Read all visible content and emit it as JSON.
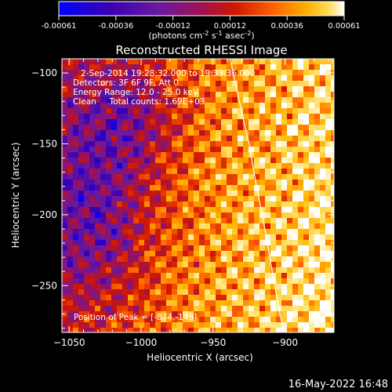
{
  "colorbar": {
    "tick_labels": [
      "-0.00061",
      "-0.00036",
      "-0.00012",
      "0.00012",
      "0.00036",
      "0.00061"
    ],
    "unit_parts": [
      "(photons cm",
      "-2",
      " s",
      "-1",
      " asec",
      "-2",
      ")"
    ]
  },
  "plot": {
    "title": "Reconstructed RHESSI Image",
    "info_lines": [
      "2-Sep-2014 19:28:32.000 to 19:33:36.000",
      "Detectors: 3F 6F 9F, Att 0",
      "Energy Range: 12.0 - 25.0 keV",
      "Clean     Total counts: 1.69E+03"
    ],
    "peak_label": "Position of Peak = [-874,-148]"
  },
  "footer": {
    "timestamp": "16-May-2022 16:48"
  },
  "chart_data": {
    "type": "heatmap",
    "title": "Reconstructed RHESSI Image",
    "xlabel": "Heliocentric X (arcsec)",
    "ylabel": "Heliocentric Y (arcsec)",
    "xlim": [
      -1055,
      -866
    ],
    "ylim": [
      -283,
      -90
    ],
    "x_ticks": [
      {
        "value": -1050,
        "label": "−1050"
      },
      {
        "value": -1000,
        "label": "−1000"
      },
      {
        "value": -950,
        "label": "−950"
      },
      {
        "value": -900,
        "label": "−900"
      }
    ],
    "y_ticks": [
      {
        "value": -100,
        "label": "−100"
      },
      {
        "value": -150,
        "label": "−150"
      },
      {
        "value": -200,
        "label": "−200"
      },
      {
        "value": -250,
        "label": "−250"
      }
    ],
    "colorbar_range": [
      -0.00061,
      0.00061
    ],
    "peak_position": [
      -874,
      -148
    ],
    "limb_curve": [
      [
        -938,
        -90
      ],
      [
        -925,
        -150
      ],
      [
        -914,
        -210
      ],
      [
        -901,
        -283
      ]
    ],
    "colormap_stops": [
      "#0000ff",
      "#3a00b0",
      "#6a1aa0",
      "#a01050",
      "#d01800",
      "#ff6000",
      "#ffb000",
      "#ffe060",
      "#ffffff"
    ]
  }
}
